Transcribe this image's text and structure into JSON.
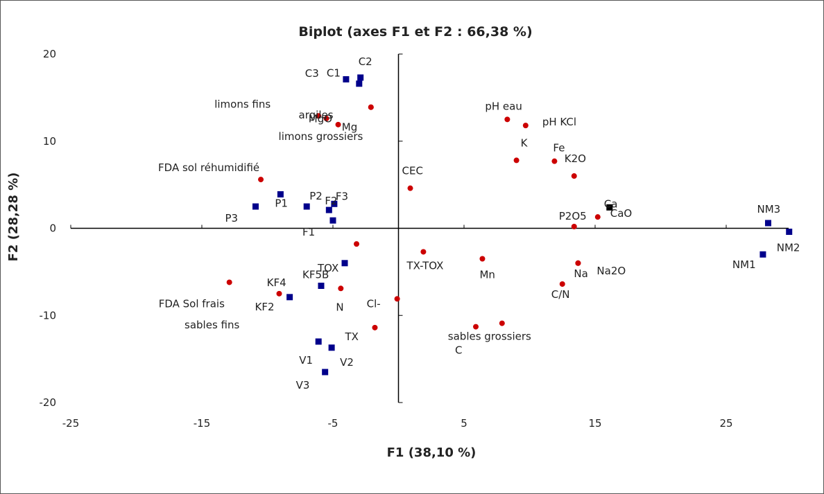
{
  "chart_data": {
    "type": "scatter",
    "title": "Biplot (axes F1 et F2 : 66,38 %)",
    "xlabel": "F1 (38,10 %)",
    "ylabel": "F2 (28,28 %)",
    "xlim": [
      -25,
      30
    ],
    "ylim": [
      -20,
      20
    ],
    "x_ticks": [
      "-25",
      "-15",
      "-5",
      "5",
      "15",
      "25"
    ],
    "y_ticks": [
      "20",
      "10",
      "0",
      "-10",
      "-20"
    ],
    "grid": false,
    "legend": "none",
    "colors": {
      "observations": "#00008b",
      "variables": "#cc0000",
      "highlight": "#000000"
    },
    "series": [
      {
        "marker": "square",
        "color": "#00008b",
        "points": [
          {
            "label": "C1",
            "x": -4.0,
            "y": 17.1
          },
          {
            "label": "C2",
            "x": -2.9,
            "y": 17.3
          },
          {
            "label": "C3",
            "x": -3.0,
            "y": 16.6
          },
          {
            "label": "P1",
            "x": -9.0,
            "y": 3.9
          },
          {
            "label": "P2",
            "x": -7.0,
            "y": 2.5
          },
          {
            "label": "P3",
            "x": -10.9,
            "y": 2.5
          },
          {
            "label": "F1",
            "x": -5.0,
            "y": 0.9
          },
          {
            "label": "F2",
            "x": -5.3,
            "y": 2.1
          },
          {
            "label": "F3",
            "x": -4.9,
            "y": 2.8
          },
          {
            "label": "TOX",
            "x": -4.1,
            "y": -4.0
          },
          {
            "label": "KF5B",
            "x": -5.9,
            "y": -6.6
          },
          {
            "label": "KF4",
            "x": -8.3,
            "y": -7.9
          },
          {
            "label": "V1",
            "x": -6.1,
            "y": -13.0
          },
          {
            "label": "V2",
            "x": -5.1,
            "y": -13.7
          },
          {
            "label": "V3",
            "x": -5.6,
            "y": -16.5
          },
          {
            "label": "NM1",
            "x": 27.8,
            "y": -3.0
          },
          {
            "label": "NM2",
            "x": 29.8,
            "y": -0.4
          },
          {
            "label": "NM3",
            "x": 28.2,
            "y": 0.6
          }
        ]
      },
      {
        "marker": "circle",
        "color": "#cc0000",
        "points": [
          {
            "label": "MgO",
            "x": -2.1,
            "y": 13.9
          },
          {
            "label": "Mg",
            "x": -2.1,
            "y": 13.9
          },
          {
            "label": "limons fins",
            "x": -6.1,
            "y": 12.9
          },
          {
            "label": "argiles",
            "x": -5.5,
            "y": 12.6
          },
          {
            "label": "limons grossiers",
            "x": -4.6,
            "y": 11.9
          },
          {
            "label": "FDA sol réhumidifié",
            "x": -10.5,
            "y": 5.6
          },
          {
            "label": "pH eau",
            "x": 8.3,
            "y": 12.5
          },
          {
            "label": "pH KCl",
            "x": 9.7,
            "y": 11.8
          },
          {
            "label": "K",
            "x": 9.0,
            "y": 7.8
          },
          {
            "label": "Fe",
            "x": 11.9,
            "y": 7.7
          },
          {
            "label": "K2O",
            "x": 13.4,
            "y": 6.0
          },
          {
            "label": "CEC",
            "x": 0.9,
            "y": 4.6
          },
          {
            "label": "P2O5",
            "x": 13.4,
            "y": 0.2
          },
          {
            "label": "CaO",
            "x": 15.2,
            "y": 1.3
          },
          {
            "label": "TX-TOX",
            "x": 1.9,
            "y": -2.7
          },
          {
            "label": "Mn",
            "x": 6.4,
            "y": -3.5
          },
          {
            "label": "Na",
            "x": 13.7,
            "y": -4.0
          },
          {
            "label": "Na2O",
            "x": 13.7,
            "y": -4.0
          },
          {
            "label": "C/N",
            "x": 12.5,
            "y": -6.4
          },
          {
            "label": "FDA Sol frais",
            "x": -12.9,
            "y": -6.2
          },
          {
            "label": "KF2",
            "x": -9.1,
            "y": -7.5
          },
          {
            "label": "N",
            "x": -4.4,
            "y": -6.9
          },
          {
            "label": "sables fins",
            "x": -3.2,
            "y": -1.8
          },
          {
            "label": "Cl-",
            "x": -0.1,
            "y": -8.1
          },
          {
            "label": "TX",
            "x": -1.8,
            "y": -11.4
          },
          {
            "label": "sables grossiers",
            "x": 7.9,
            "y": -10.9
          },
          {
            "label": "C",
            "x": 5.9,
            "y": -11.3
          }
        ]
      },
      {
        "marker": "square",
        "color": "#000000",
        "points": [
          {
            "label": "Ca",
            "x": 16.1,
            "y": 2.4
          }
        ]
      }
    ]
  }
}
